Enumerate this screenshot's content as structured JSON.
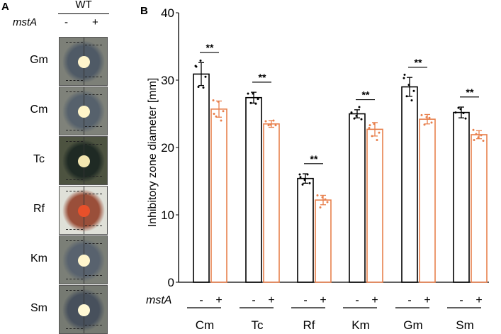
{
  "panel_a": {
    "label": "A",
    "strain": "WT",
    "gene": "mstA",
    "conditions": [
      "-",
      "+"
    ],
    "rows": [
      {
        "label": "Gm",
        "bg": "#7d8078",
        "halo": "#4f5a66",
        "disc": "#fff5cc"
      },
      {
        "label": "Cm",
        "bg": "#7f827a",
        "halo": "#56616c",
        "disc": "#fff5c8"
      },
      {
        "label": "Tc",
        "bg": "#4d5340",
        "halo": "#1f2a24",
        "disc": "#f2e6b0"
      },
      {
        "label": "Rf",
        "bg": "#dfe0d8",
        "halo": "#9a4f3a",
        "disc": "#e8502a"
      },
      {
        "label": "Km",
        "bg": "#7b7f77",
        "halo": "#58626e",
        "disc": "#fff5cc"
      },
      {
        "label": "Sm",
        "bg": "#767a72",
        "halo": "#47505c",
        "disc": "#fff8d4"
      }
    ]
  },
  "chart_data": {
    "panel_label": "B",
    "type": "bar",
    "ylabel": "Inhibitory zone diameter [mm]",
    "ylim": [
      0,
      40
    ],
    "yticks": [
      "0",
      "10",
      "20",
      "30",
      "40"
    ],
    "gene": "mstA",
    "categories": [
      "Cm",
      "Tc",
      "Rf",
      "Km",
      "Gm",
      "Sm"
    ],
    "condition_labels": [
      "-",
      "+"
    ],
    "significance": [
      "**",
      "**",
      "**",
      "**",
      "**",
      "**"
    ],
    "series": [
      {
        "name": "mstA -",
        "color": "#000000",
        "values": [
          30.9,
          27.4,
          15.4,
          25.0,
          29.0,
          25.2
        ],
        "errors": [
          1.7,
          0.8,
          0.7,
          0.6,
          1.4,
          0.8
        ],
        "points": [
          [
            32.1,
            32.9,
            30.5,
            29.0,
            28.9,
            32.0
          ],
          [
            28.0,
            28.0,
            27.2,
            26.6,
            26.5
          ],
          [
            16.0,
            15.2,
            14.7,
            14.5,
            16.0,
            15.6
          ],
          [
            25.2,
            24.7,
            24.2,
            24.3,
            26.0
          ],
          [
            30.3,
            29.3,
            28.4,
            27.6,
            27.0,
            30.8
          ],
          [
            25.2,
            25.7,
            24.3,
            25.9,
            25.1
          ]
        ]
      },
      {
        "name": "mstA +",
        "color": "#e8804d",
        "values": [
          25.7,
          23.5,
          12.2,
          22.7,
          24.2,
          21.9
        ],
        "errors": [
          1.2,
          0.5,
          0.7,
          1.0,
          0.7,
          0.6
        ],
        "points": [
          [
            27.0,
            26.8,
            25.4,
            24.6,
            24.0,
            25.0
          ],
          [
            23.9,
            23.4,
            23.3,
            23.3,
            24.0
          ],
          [
            12.9,
            12.6,
            11.9,
            11.1,
            12.3
          ],
          [
            22.9,
            23.5,
            22.2,
            21.7,
            21.1,
            23.3
          ],
          [
            24.8,
            24.5,
            23.7,
            23.4,
            24.4
          ],
          [
            22.6,
            21.5,
            21.0,
            22.0,
            21.8,
            21.1
          ]
        ]
      }
    ]
  }
}
